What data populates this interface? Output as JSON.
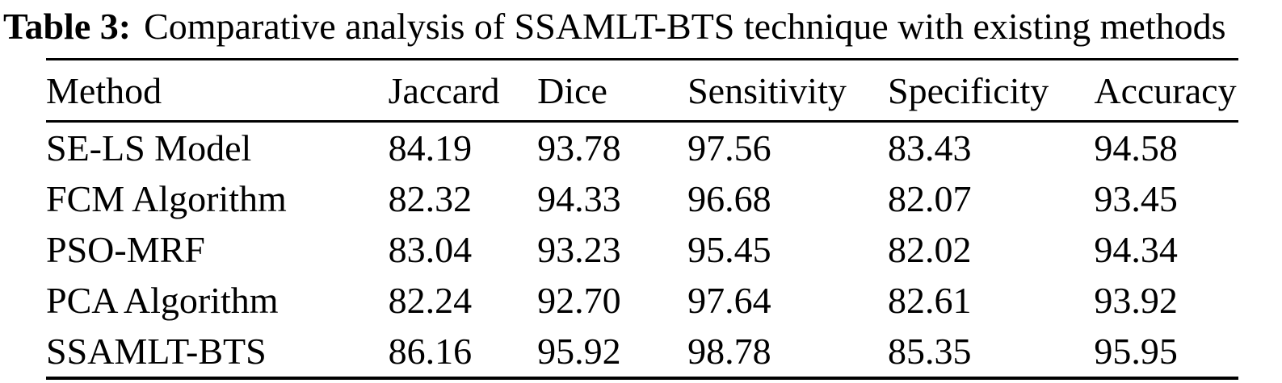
{
  "caption": {
    "label": "Table 3:",
    "text": "Comparative analysis of SSAMLT-BTS technique with existing methods"
  },
  "table": {
    "headers": [
      "Method",
      "Jaccard",
      "Dice",
      "Sensitivity",
      "Specificity",
      "Accuracy"
    ],
    "rows": [
      {
        "method": "SE-LS Model",
        "values": [
          "84.19",
          "93.78",
          "97.56",
          "83.43",
          "94.58"
        ]
      },
      {
        "method": "FCM Algorithm",
        "values": [
          "82.32",
          "94.33",
          "96.68",
          "82.07",
          "93.45"
        ]
      },
      {
        "method": "PSO-MRF",
        "values": [
          "83.04",
          "93.23",
          "95.45",
          "82.02",
          "94.34"
        ]
      },
      {
        "method": "PCA Algorithm",
        "values": [
          "82.24",
          "92.70",
          "97.64",
          "82.61",
          "93.92"
        ]
      },
      {
        "method": "SSAMLT-BTS",
        "values": [
          "86.16",
          "95.92",
          "98.78",
          "85.35",
          "95.95"
        ]
      }
    ]
  },
  "chart_data": {
    "type": "table",
    "title": "Table 3: Comparative analysis of SSAMLT-BTS technique with existing methods",
    "columns": [
      "Method",
      "Jaccard",
      "Dice",
      "Sensitivity",
      "Specificity",
      "Accuracy"
    ],
    "rows": [
      [
        "SE-LS Model",
        84.19,
        93.78,
        97.56,
        83.43,
        94.58
      ],
      [
        "FCM Algorithm",
        82.32,
        94.33,
        96.68,
        82.07,
        93.45
      ],
      [
        "PSO-MRF",
        83.04,
        93.23,
        95.45,
        82.02,
        94.34
      ],
      [
        "PCA Algorithm",
        82.24,
        92.7,
        97.64,
        82.61,
        93.92
      ],
      [
        "SSAMLT-BTS",
        86.16,
        95.92,
        98.78,
        85.35,
        95.95
      ]
    ]
  },
  "colors": {
    "text": "#000000",
    "background": "#ffffff",
    "rule": "#000000"
  }
}
